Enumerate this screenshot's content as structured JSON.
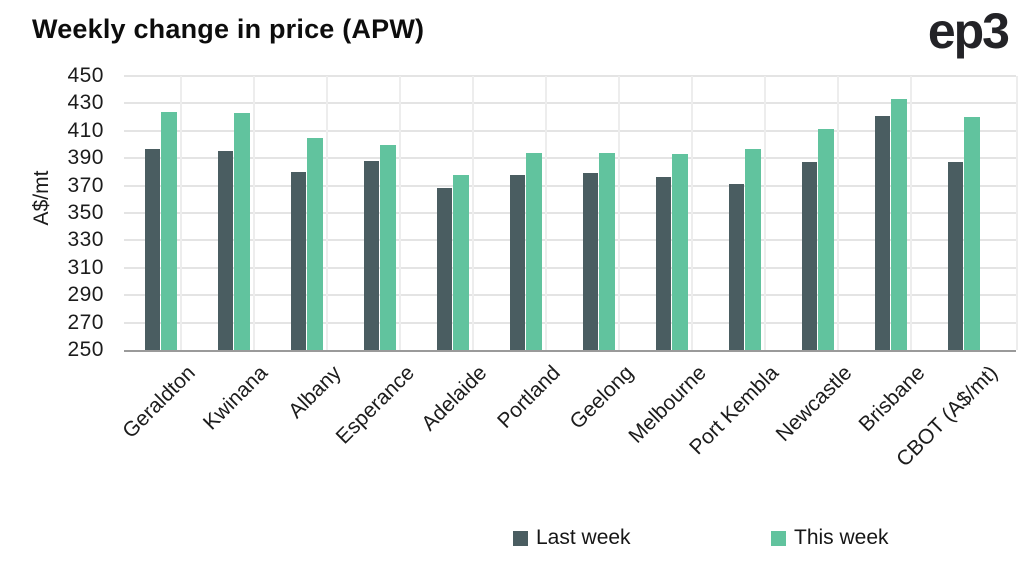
{
  "logo": {
    "text": "ep3"
  },
  "chart_data": {
    "type": "bar",
    "title": "Weekly change in price (APW)",
    "xlabel": "",
    "ylabel": "A$/mt",
    "ylim": [
      250,
      450
    ],
    "ytick_step": 20,
    "grid": "horizontal-and-category-separators",
    "legend_position": "bottom",
    "categories": [
      "Geraldton",
      "Kwinana",
      "Albany",
      "Esperance",
      "Adelaide",
      "Portland",
      "Geelong",
      "Melbourne",
      "Port Kembla",
      "Newcastle",
      "Brisbane",
      "CBOT (A$/mt)"
    ],
    "series": [
      {
        "name": "Last week",
        "color": "#4a5d61",
        "values": [
          397,
          395,
          380,
          388,
          368,
          378,
          379,
          376,
          371,
          387,
          421,
          387
        ]
      },
      {
        "name": "This week",
        "color": "#61c39e",
        "values": [
          424,
          423,
          405,
          400,
          378,
          394,
          394,
          393,
          397,
          411,
          433,
          420
        ]
      }
    ]
  },
  "colors": {
    "background": "#ffffff",
    "title_text": "#0d0d0d",
    "axis_text": "#1c1c1c",
    "gridline": "#e4e4e4",
    "axis_line": "#9a9a9a"
  }
}
